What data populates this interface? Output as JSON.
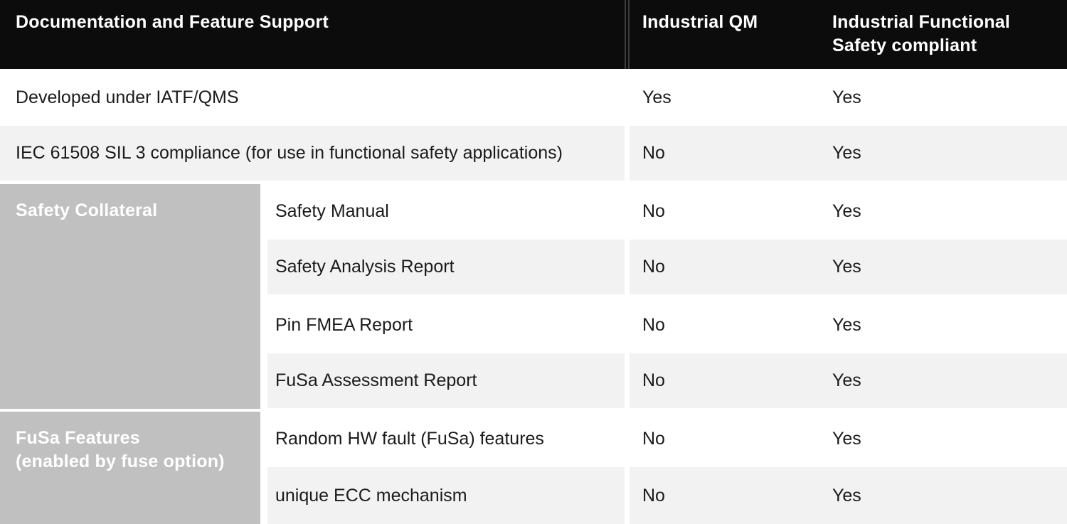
{
  "colors": {
    "header_bg": "#0c0c0c",
    "header_text": "#ffffff",
    "header_divider": "#3d3d3d",
    "group_cell_bg": "#c0c0c0",
    "group_cell_text": "#ffffff",
    "shaded_row_bg": "#f2f2f2",
    "body_text": "#1b1b1b",
    "page_bg": "#ffffff"
  },
  "header": {
    "feature_col": "Documentation and Feature Support",
    "qm_col": "Industrial QM",
    "fusa_col": "Industrial Functional\nSafety compliant"
  },
  "rows": [
    {
      "label": "Developed under IATF/QMS",
      "qm": "Yes",
      "fusa": "Yes"
    },
    {
      "label": "IEC 61508 SIL 3 compliance (for use in functional safety applications)",
      "qm": "No",
      "fusa": "Yes"
    }
  ],
  "groups": [
    {
      "label": "Safety Collateral",
      "items": [
        {
          "label": "Safety Manual",
          "qm": "No",
          "fusa": "Yes"
        },
        {
          "label": "Safety Analysis Report",
          "qm": "No",
          "fusa": "Yes"
        },
        {
          "label": "Pin FMEA Report",
          "qm": "No",
          "fusa": "Yes"
        },
        {
          "label": "FuSa Assessment Report",
          "qm": "No",
          "fusa": "Yes"
        }
      ]
    },
    {
      "label": "FuSa Features\n(enabled by fuse option)",
      "items": [
        {
          "label": "Random HW fault (FuSa) features",
          "qm": "No",
          "fusa": "Yes"
        },
        {
          "label": "unique ECC mechanism",
          "qm": "No",
          "fusa": "Yes"
        }
      ]
    }
  ]
}
